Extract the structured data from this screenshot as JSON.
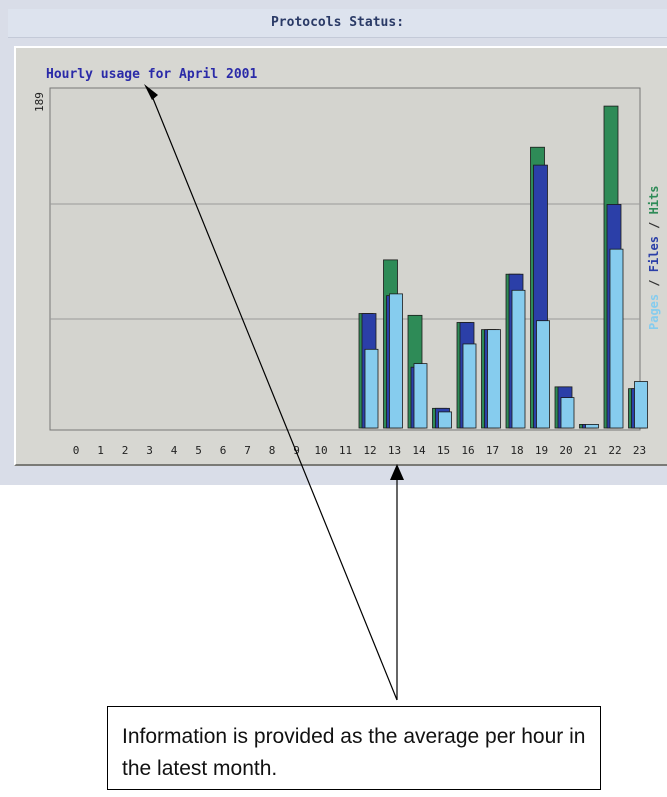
{
  "panel": {
    "header": "Protocols Status:"
  },
  "chart_data": {
    "type": "bar",
    "title": "Hourly usage for April 2001",
    "ymax_label": "189",
    "ylim": [
      0,
      189
    ],
    "grid": true,
    "legend_placement": "right",
    "categories": [
      "0",
      "1",
      "2",
      "3",
      "4",
      "5",
      "6",
      "7",
      "8",
      "9",
      "10",
      "11",
      "12",
      "13",
      "14",
      "15",
      "16",
      "17",
      "18",
      "19",
      "20",
      "21",
      "22",
      "23"
    ],
    "series": [
      {
        "name": "Hits",
        "color": "#2e8b57",
        "values": [
          0,
          0,
          0,
          0,
          0,
          0,
          0,
          0,
          0,
          0,
          0,
          0,
          64,
          94,
          63,
          11,
          59,
          55,
          86,
          157,
          23,
          2,
          180,
          22
        ]
      },
      {
        "name": "Files",
        "color": "#2b3fa8",
        "values": [
          0,
          0,
          0,
          0,
          0,
          0,
          0,
          0,
          0,
          0,
          0,
          0,
          64,
          74,
          34,
          11,
          59,
          55,
          86,
          147,
          23,
          2,
          125,
          22
        ]
      },
      {
        "name": "Pages",
        "color": "#86ccee",
        "values": [
          0,
          0,
          0,
          0,
          0,
          0,
          0,
          0,
          0,
          0,
          0,
          0,
          44,
          75,
          36,
          9,
          47,
          55,
          77,
          60,
          17,
          2,
          100,
          26
        ]
      }
    ],
    "legend_separator": " / "
  },
  "annotation": {
    "text": "Information is provided as the average per hour in the latest month."
  }
}
